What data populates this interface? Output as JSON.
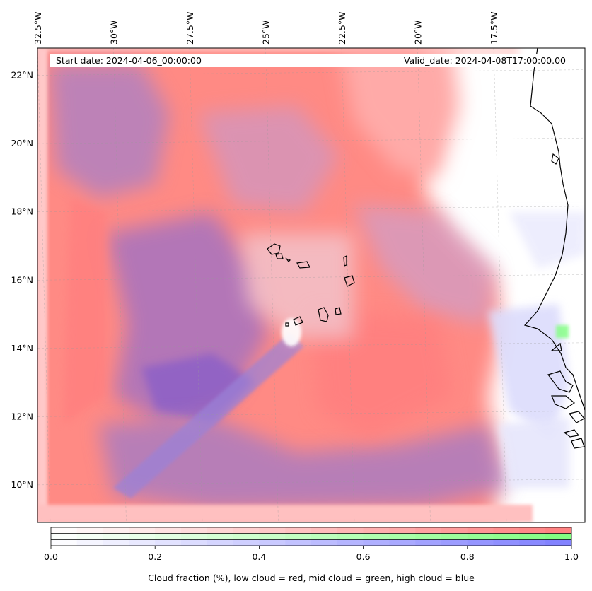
{
  "map": {
    "extent": {
      "lon_min": -32.5,
      "lon_max": -14.5,
      "lat_min": 8.9,
      "lat_max": 22.8
    },
    "lon_ticks": [
      {
        "value": -32.5,
        "label": "32.5°W"
      },
      {
        "value": -30,
        "label": "30°W"
      },
      {
        "value": -27.5,
        "label": "27.5°W"
      },
      {
        "value": -25,
        "label": "25°W"
      },
      {
        "value": -22.5,
        "label": "22.5°W"
      },
      {
        "value": -20,
        "label": "20°W"
      },
      {
        "value": -17.5,
        "label": "17.5°W"
      }
    ],
    "lat_ticks": [
      {
        "value": 10,
        "label": "10°N"
      },
      {
        "value": 12,
        "label": "12°N"
      },
      {
        "value": 14,
        "label": "14°N"
      },
      {
        "value": 16,
        "label": "16°N"
      },
      {
        "value": 18,
        "label": "18°N"
      },
      {
        "value": 20,
        "label": "20°N"
      },
      {
        "value": 22,
        "label": "22°N"
      }
    ],
    "start_date": "Start date: 2024-04-06_00:00:00",
    "valid_date": "Valid_date: 2024-04-08T17:00:00.00",
    "gridlines": true,
    "colors": {
      "low_cloud": "#ff7f7f",
      "mid_cloud": "#7fff7f",
      "high_cloud": "#7f7fff",
      "coastline": "#000000"
    }
  },
  "colorbar": {
    "ticks": [
      {
        "value": 0.0,
        "label": "0.0"
      },
      {
        "value": 0.2,
        "label": "0.2"
      },
      {
        "value": 0.4,
        "label": "0.4"
      },
      {
        "value": 0.6,
        "label": "0.6"
      },
      {
        "value": 0.8,
        "label": "0.8"
      },
      {
        "value": 1.0,
        "label": "1.0"
      }
    ],
    "levels": 20,
    "label": "Cloud fraction (%), low cloud = red, mid cloud = green, high cloud = blue"
  }
}
